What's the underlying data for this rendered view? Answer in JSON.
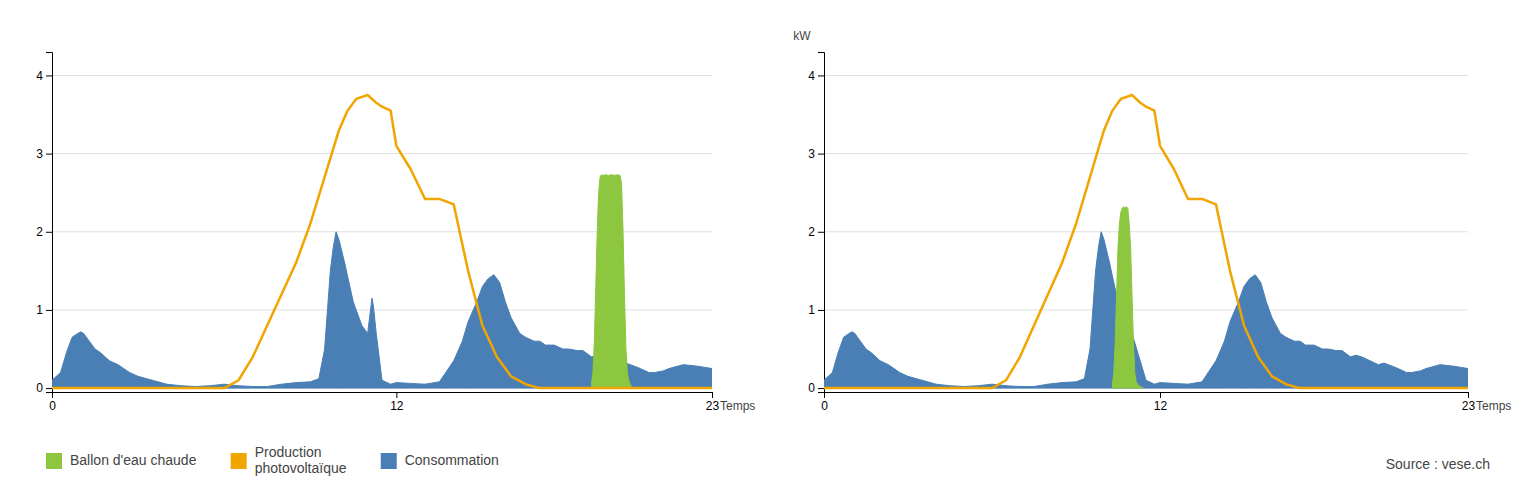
{
  "chart_data": [
    {
      "type": "line",
      "xlabel": "Temps",
      "xlim": [
        0,
        23
      ],
      "xticks": [
        0,
        12,
        23
      ],
      "ylim": [
        -0.05,
        4.3
      ],
      "yticks": [
        0,
        1,
        2,
        3,
        4
      ],
      "grid": true,
      "legend": "lower left",
      "source": "Source : vese.ch",
      "series": [
        {
          "name": "Ballon d'eau chaude",
          "type": "area",
          "color": "#8DC63F",
          "x": [
            18.8,
            18.85,
            18.9,
            18.95,
            19.0,
            19.05,
            19.1,
            19.15,
            19.2,
            19.3,
            19.4,
            19.5,
            19.6,
            19.7,
            19.8,
            19.85,
            19.9,
            19.95,
            20.0,
            20.05,
            20.1,
            20.15,
            20.2
          ],
          "values": [
            0.05,
            0.2,
            0.6,
            1.3,
            2.0,
            2.5,
            2.7,
            2.73,
            2.72,
            2.73,
            2.72,
            2.73,
            2.72,
            2.73,
            2.72,
            2.6,
            2.0,
            1.2,
            0.5,
            0.2,
            0.1,
            0.05,
            0.02
          ]
        },
        {
          "name": "Production\nphotovoltaïque",
          "type": "line",
          "color": "#F0A500",
          "x": [
            0,
            1,
            2,
            3,
            4,
            5,
            5.5,
            6,
            6.5,
            7,
            7.5,
            8,
            8.5,
            9,
            9.5,
            10,
            10.3,
            10.6,
            11,
            11.3,
            11.5,
            11.8,
            12,
            12.5,
            13,
            13.5,
            14,
            14.5,
            15,
            15.5,
            16,
            16.5,
            17,
            17.5,
            18,
            19,
            20,
            21,
            22,
            23
          ],
          "values": [
            0,
            0,
            0,
            0,
            0,
            0,
            0,
            0,
            0.1,
            0.4,
            0.8,
            1.2,
            1.6,
            2.1,
            2.7,
            3.3,
            3.55,
            3.7,
            3.75,
            3.65,
            3.6,
            3.55,
            3.1,
            2.8,
            2.42,
            2.42,
            2.35,
            1.5,
            0.8,
            0.4,
            0.15,
            0.05,
            0,
            0,
            0,
            0,
            0,
            0,
            0,
            0
          ]
        },
        {
          "name": "Consommation",
          "type": "area",
          "color": "#4A7FB5",
          "x": [
            0,
            0.3,
            0.5,
            0.7,
            0.9,
            1.0,
            1.1,
            1.3,
            1.5,
            1.7,
            2.0,
            2.3,
            2.5,
            2.7,
            3.0,
            3.5,
            4.0,
            4.5,
            5.0,
            5.5,
            6.0,
            6.5,
            7.0,
            7.5,
            8.0,
            8.5,
            9.0,
            9.3,
            9.5,
            9.6,
            9.7,
            9.8,
            9.9,
            10.0,
            10.2,
            10.5,
            10.8,
            11.0,
            11.1,
            11.15,
            11.2,
            11.3,
            11.5,
            11.8,
            12.0,
            12.5,
            13.0,
            13.5,
            14.0,
            14.3,
            14.5,
            14.8,
            15.0,
            15.2,
            15.4,
            15.6,
            15.8,
            16.0,
            16.3,
            16.5,
            16.8,
            17.0,
            17.2,
            17.5,
            17.8,
            18.0,
            18.3,
            18.5,
            18.8,
            19.0,
            19.2,
            19.5,
            19.8,
            20.0,
            20.3,
            20.5,
            20.8,
            21.0,
            21.3,
            21.5,
            22.0,
            22.5,
            23.0
          ],
          "values": [
            0.1,
            0.2,
            0.45,
            0.65,
            0.7,
            0.72,
            0.7,
            0.6,
            0.5,
            0.45,
            0.35,
            0.3,
            0.25,
            0.2,
            0.15,
            0.1,
            0.05,
            0.03,
            0.02,
            0.03,
            0.05,
            0.03,
            0.02,
            0.02,
            0.05,
            0.07,
            0.08,
            0.12,
            0.5,
            1.0,
            1.5,
            1.8,
            2.0,
            1.9,
            1.6,
            1.1,
            0.8,
            0.7,
            1.0,
            1.15,
            1.05,
            0.7,
            0.1,
            0.05,
            0.07,
            0.06,
            0.05,
            0.08,
            0.35,
            0.6,
            0.85,
            1.1,
            1.3,
            1.4,
            1.45,
            1.35,
            1.1,
            0.9,
            0.7,
            0.65,
            0.6,
            0.6,
            0.55,
            0.55,
            0.5,
            0.5,
            0.48,
            0.48,
            0.4,
            0.42,
            0.4,
            0.35,
            0.3,
            0.32,
            0.28,
            0.25,
            0.2,
            0.2,
            0.22,
            0.25,
            0.3,
            0.28,
            0.25
          ]
        }
      ]
    },
    {
      "type": "line",
      "xlabel": "Temps",
      "ylabel": "kW",
      "xlim": [
        0,
        23
      ],
      "xticks": [
        0,
        12,
        23
      ],
      "ylim": [
        -0.05,
        4.3
      ],
      "yticks": [
        0,
        1,
        2,
        3,
        4
      ],
      "grid": true,
      "series": [
        {
          "type": "area",
          "color": "#8DC63F",
          "x": [
            10.3,
            10.35,
            10.4,
            10.45,
            10.5,
            10.55,
            10.6,
            10.65,
            10.7,
            10.75,
            10.8,
            10.85,
            10.9,
            10.95,
            11.0,
            11.05,
            11.1,
            11.15,
            11.2,
            11.25,
            11.3,
            11.35,
            11.4
          ],
          "values": [
            0.05,
            0.2,
            0.6,
            1.2,
            1.8,
            2.1,
            2.25,
            2.3,
            2.32,
            2.3,
            2.32,
            2.3,
            2.1,
            1.8,
            1.2,
            0.6,
            0.2,
            0.08,
            0.05,
            0.03,
            0.02,
            0.01,
            0.0
          ]
        },
        {
          "type": "line",
          "color": "#F0A500",
          "x": [
            0,
            1,
            2,
            3,
            4,
            5,
            5.5,
            6,
            6.5,
            7,
            7.5,
            8,
            8.5,
            9,
            9.5,
            10,
            10.3,
            10.6,
            11,
            11.3,
            11.5,
            11.8,
            12,
            12.5,
            13,
            13.5,
            14,
            14.5,
            15,
            15.5,
            16,
            16.5,
            17,
            17.5,
            18,
            19,
            20,
            21,
            22,
            23
          ],
          "values": [
            0,
            0,
            0,
            0,
            0,
            0,
            0,
            0,
            0.1,
            0.4,
            0.8,
            1.2,
            1.6,
            2.1,
            2.7,
            3.3,
            3.55,
            3.7,
            3.75,
            3.65,
            3.6,
            3.55,
            3.1,
            2.8,
            2.42,
            2.42,
            2.35,
            1.5,
            0.8,
            0.4,
            0.15,
            0.05,
            0,
            0,
            0,
            0,
            0,
            0,
            0,
            0
          ]
        },
        {
          "type": "area",
          "color": "#4A7FB5",
          "x": [
            0,
            0.3,
            0.5,
            0.7,
            0.9,
            1.0,
            1.1,
            1.3,
            1.5,
            1.7,
            2.0,
            2.3,
            2.5,
            2.7,
            3.0,
            3.5,
            4.0,
            4.5,
            5.0,
            5.5,
            6.0,
            6.5,
            7.0,
            7.5,
            8.0,
            8.5,
            9.0,
            9.3,
            9.5,
            9.6,
            9.7,
            9.8,
            9.9,
            10.0,
            10.2,
            10.5,
            10.8,
            11.0,
            11.5,
            11.8,
            12.0,
            12.5,
            13.0,
            13.5,
            14.0,
            14.3,
            14.5,
            14.8,
            15.0,
            15.2,
            15.4,
            15.6,
            15.8,
            16.0,
            16.3,
            16.5,
            16.8,
            17.0,
            17.2,
            17.5,
            17.8,
            18.0,
            18.3,
            18.5,
            18.8,
            19.0,
            19.2,
            19.5,
            19.8,
            20.0,
            20.3,
            20.5,
            20.8,
            21.0,
            21.3,
            21.5,
            22.0,
            22.5,
            23.0
          ],
          "values": [
            0.1,
            0.2,
            0.45,
            0.65,
            0.7,
            0.72,
            0.7,
            0.6,
            0.5,
            0.45,
            0.35,
            0.3,
            0.25,
            0.2,
            0.15,
            0.1,
            0.05,
            0.03,
            0.02,
            0.03,
            0.05,
            0.03,
            0.02,
            0.02,
            0.05,
            0.07,
            0.08,
            0.12,
            0.5,
            1.0,
            1.5,
            1.8,
            2.0,
            1.9,
            1.6,
            1.1,
            0.8,
            0.7,
            0.1,
            0.05,
            0.07,
            0.06,
            0.05,
            0.08,
            0.35,
            0.6,
            0.85,
            1.1,
            1.3,
            1.4,
            1.45,
            1.35,
            1.1,
            0.9,
            0.7,
            0.65,
            0.6,
            0.6,
            0.55,
            0.55,
            0.5,
            0.5,
            0.48,
            0.48,
            0.4,
            0.42,
            0.4,
            0.35,
            0.3,
            0.32,
            0.28,
            0.25,
            0.2,
            0.2,
            0.22,
            0.25,
            0.3,
            0.28,
            0.25
          ]
        }
      ]
    }
  ]
}
